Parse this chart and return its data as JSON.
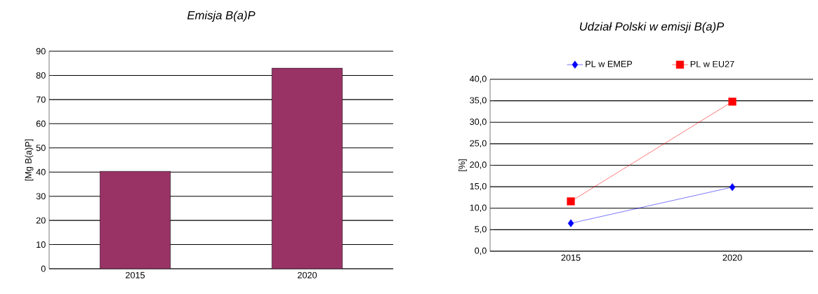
{
  "chart_data": [
    {
      "type": "bar",
      "title": "Emisja B(a)P",
      "ylabel": "[Mg B(a)P]",
      "categories": [
        "2015",
        "2020"
      ],
      "values": [
        40.3,
        83
      ],
      "color": "#993366",
      "ylim": [
        0,
        90
      ],
      "yticks": [
        0,
        10,
        20,
        30,
        40,
        50,
        60,
        70,
        80,
        90
      ],
      "grid": "y"
    },
    {
      "type": "line",
      "title": "Udział Polski w emisji B(a)P",
      "ylabel": "[%]",
      "categories": [
        "2015",
        "2020"
      ],
      "series": [
        {
          "name": "PL w EMEP",
          "color": "#0000ff",
          "marker": "diamond",
          "values": [
            6.5,
            14.9
          ]
        },
        {
          "name": "PL w EU27",
          "color": "#ff0000",
          "marker": "square",
          "values": [
            11.6,
            34.8
          ]
        }
      ],
      "ylim": [
        0,
        40
      ],
      "yticks": [
        {
          "value": 0,
          "label": "0,0"
        },
        {
          "value": 5,
          "label": "5,0"
        },
        {
          "value": 10,
          "label": "10,0"
        },
        {
          "value": 15,
          "label": "15,0"
        },
        {
          "value": 20,
          "label": "20,0"
        },
        {
          "value": 25,
          "label": "25,0"
        },
        {
          "value": 30,
          "label": "30,0"
        },
        {
          "value": 35,
          "label": "35,0"
        },
        {
          "value": 40,
          "label": "40,0"
        }
      ],
      "grid": "y",
      "legend": "top"
    }
  ]
}
